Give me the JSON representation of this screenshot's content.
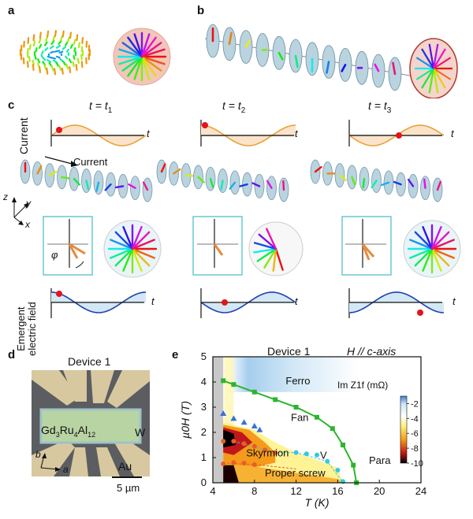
{
  "panels": {
    "a": {
      "letter": "a"
    },
    "b": {
      "letter": "b"
    },
    "c": {
      "letter": "c",
      "time_labels": [
        "t = t",
        "t = t",
        "t = t"
      ],
      "time_subscripts": [
        "1",
        "2",
        "3"
      ],
      "current_axis_label": "Current",
      "t_axis": "t",
      "current_arrow_label": "Current",
      "angle_label": "φ",
      "axis_z": "z",
      "axis_y": "y",
      "axis_x": "x",
      "efield_label_line1": "Emergent",
      "efield_label_line2": "electric field"
    },
    "d": {
      "letter": "d",
      "title": "Device 1",
      "compound": "Gd3Ru4Al12",
      "compound_parts": [
        "Gd",
        "3",
        "Ru",
        "4",
        "Al",
        "12"
      ],
      "label_w": "W",
      "label_au": "Au",
      "axis_b": "b",
      "axis_a": "a",
      "scalebar": "5 µm"
    },
    "e": {
      "letter": "e",
      "title": "Device 1",
      "field_note": "H // c-axis",
      "colorbar_label": "Im Z1f (mΩ)",
      "phase_labels": {
        "ferro": "Ferro",
        "fan": "Fan",
        "skyrmion": "Skyrmion",
        "v": "V",
        "proper_screw": "Proper screw",
        "para": "Para"
      },
      "xlabel": "T (K)",
      "ylabel": "µ0H (T)"
    }
  },
  "chart_data": {
    "type": "scatter",
    "title": "Device 1",
    "xlabel": "T (K)",
    "ylabel": "µ0H (T)",
    "xlim": [
      4,
      24
    ],
    "ylim": [
      0,
      5
    ],
    "xticks": [
      4,
      8,
      12,
      16,
      20,
      24
    ],
    "yticks": [
      0,
      1,
      2,
      3,
      4,
      5
    ],
    "colorbar": {
      "label": "Im Z1f (mΩ)",
      "ticks": [
        -2,
        -4,
        -6,
        -8,
        -10
      ],
      "range": [
        -10,
        -1
      ]
    },
    "series": [
      {
        "color": "#2db52d",
        "marker": "square",
        "x": [
          5,
          6,
          8,
          10,
          12,
          14,
          15.5,
          16.5,
          17.5,
          17.8
        ],
        "y": [
          4.05,
          3.9,
          3.6,
          3.3,
          3.0,
          2.6,
          2.15,
          1.5,
          0.7,
          0.0
        ]
      },
      {
        "color": "#3a6fd6",
        "marker": "triangle",
        "x": [
          5,
          6,
          7,
          8,
          8.5
        ],
        "y": [
          2.75,
          2.55,
          2.4,
          2.25,
          2.1
        ]
      },
      {
        "color": "#e85d2a",
        "marker": "circle",
        "x": [
          5,
          6,
          7,
          8,
          9,
          10
        ],
        "y": [
          1.65,
          1.65,
          1.55,
          1.45,
          1.3,
          1.2
        ]
      },
      {
        "color": "#e85d2a",
        "marker": "circle",
        "x": [
          5,
          6,
          7,
          8
        ],
        "y": [
          0.75,
          0.8,
          0.78,
          0.72
        ]
      },
      {
        "color": "#35c8e0",
        "marker": "circle",
        "x": [
          12,
          13,
          14,
          15,
          16,
          16.5
        ],
        "y": [
          1.2,
          1.15,
          1.1,
          0.85,
          0.5,
          0.05
        ]
      }
    ]
  }
}
